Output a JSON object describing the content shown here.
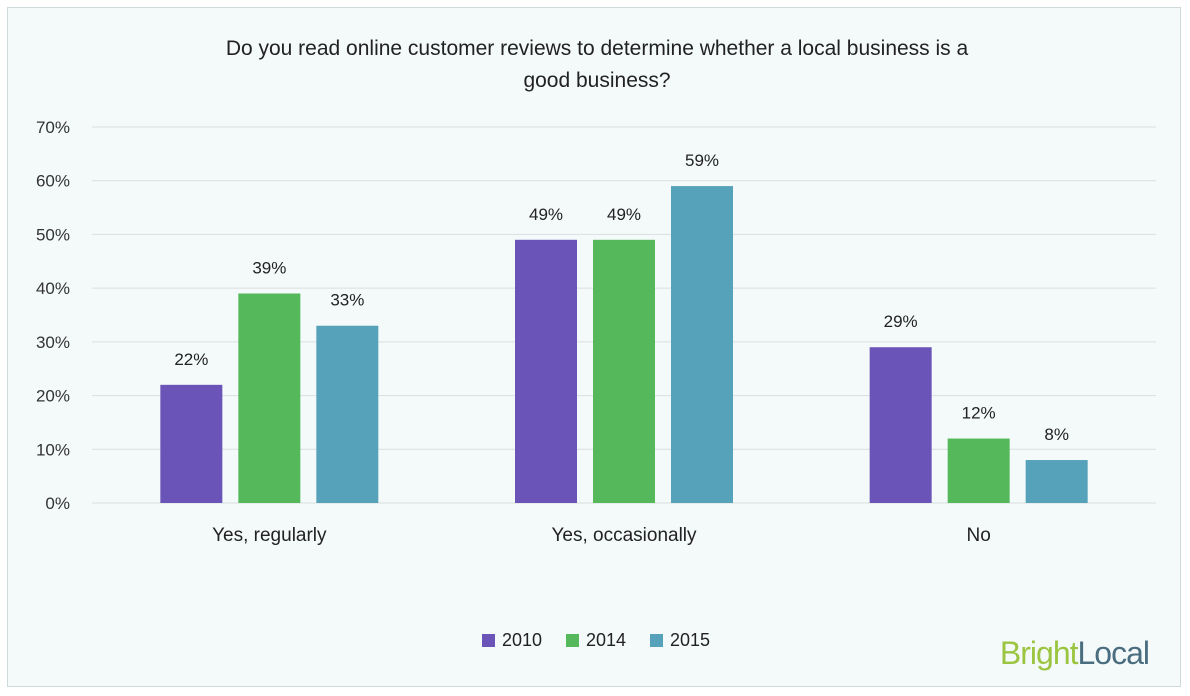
{
  "chart_data": {
    "type": "bar",
    "title": "Do you read online customer reviews to determine whether a local business is a good business?",
    "title_lines": [
      "Do you read online customer reviews to determine whether a local business is a",
      "good business?"
    ],
    "categories": [
      "Yes, regularly",
      "Yes, occasionally",
      "No"
    ],
    "series": [
      {
        "name": "2010",
        "color": "#6a54b8",
        "values": [
          22,
          49,
          29
        ],
        "labels": [
          "22%",
          "49%",
          "29%"
        ]
      },
      {
        "name": "2014",
        "color": "#55b95c",
        "values": [
          39,
          49,
          12
        ],
        "labels": [
          "39%",
          "49%",
          "12%"
        ]
      },
      {
        "name": "2015",
        "color": "#57a2bb",
        "values": [
          33,
          59,
          8
        ],
        "labels": [
          "33%",
          "59%",
          "8%"
        ]
      }
    ],
    "ylim": [
      0,
      70
    ],
    "yticks": [
      0,
      10,
      20,
      30,
      40,
      50,
      60,
      70
    ],
    "ytick_labels": [
      "0%",
      "10%",
      "20%",
      "30%",
      "40%",
      "50%",
      "60%",
      "70%"
    ],
    "xlabel": "",
    "ylabel": "",
    "grid": true,
    "legend_position": "bottom-center"
  },
  "brand": {
    "part1": "Bright",
    "part2": "Local",
    "color1": "#9bc541",
    "color2": "#4a6e7f"
  }
}
